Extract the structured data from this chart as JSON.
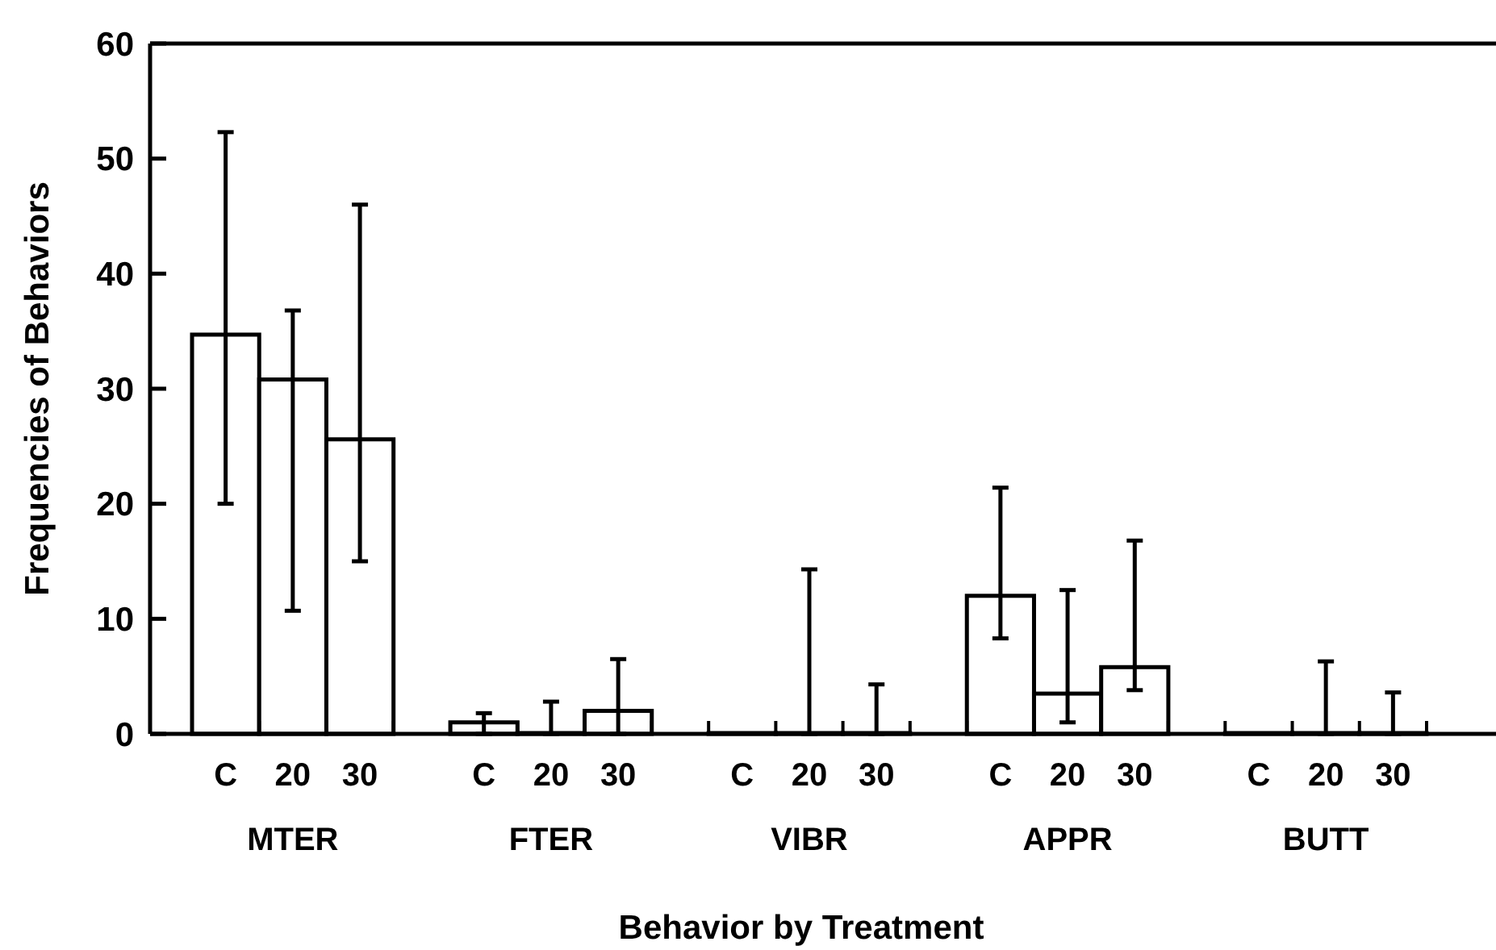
{
  "chart_data": {
    "type": "bar",
    "xlabel": "Behavior by Treatment",
    "ylabel": "Frequencies of Behaviors",
    "categories": [
      "MTER",
      "FTER",
      "VIBR",
      "APPR",
      "BUTT"
    ],
    "series": [
      {
        "name": "C",
        "color": "#ffffff",
        "values": [
          34.7,
          1,
          0,
          12,
          0
        ],
        "errors": [
          [
            20,
            52.3
          ],
          [
            0,
            1.8
          ],
          null,
          [
            8.3,
            21.4
          ],
          null
        ]
      },
      {
        "name": "20",
        "color": "#ffffff",
        "values": [
          30.8,
          0,
          0,
          3.5,
          0
        ],
        "errors": [
          [
            10.7,
            36.8
          ],
          [
            0,
            2.8
          ],
          [
            0,
            14.3
          ],
          [
            1,
            12.5
          ],
          [
            0,
            6.3
          ]
        ]
      },
      {
        "name": "30",
        "color": "#ffffff",
        "values": [
          25.6,
          2,
          0,
          5.8,
          0
        ],
        "errors": [
          [
            15,
            46
          ],
          [
            0,
            6.5
          ],
          [
            0,
            4.3
          ],
          [
            3.8,
            16.8
          ],
          [
            0,
            3.6
          ]
        ]
      }
    ],
    "ylim": [
      0,
      60
    ],
    "yticks": [
      0,
      10,
      20,
      30,
      40,
      50,
      60
    ],
    "grid": false,
    "legend": "bottom"
  }
}
